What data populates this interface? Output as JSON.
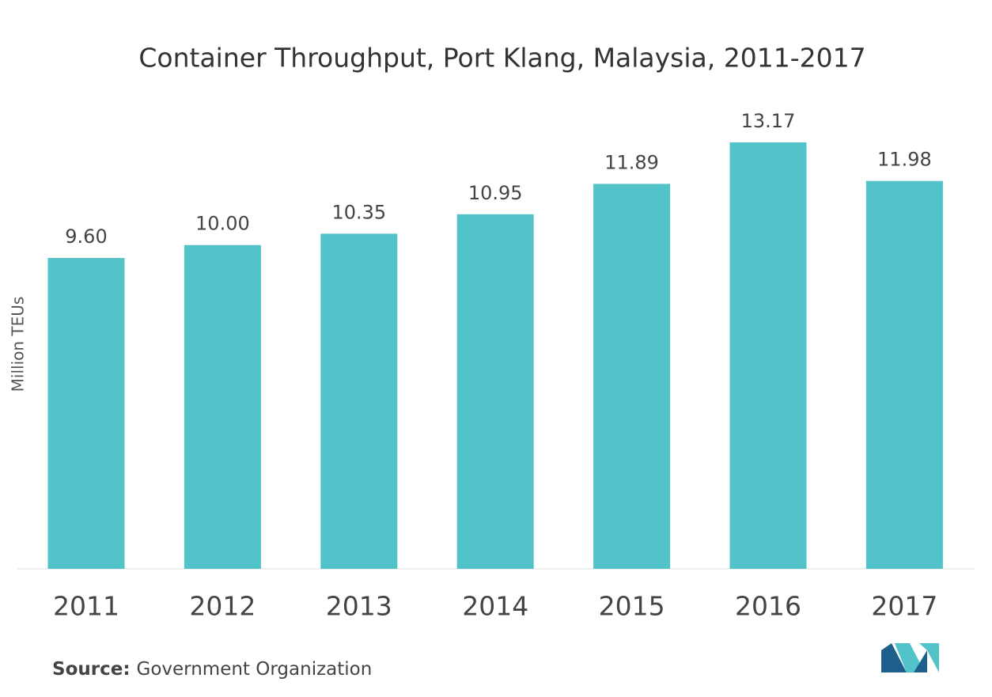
{
  "chart_data": {
    "type": "bar",
    "title": "Container Throughput, Port Klang, Malaysia, 2011-2017",
    "y_label": "Million TEUs",
    "categories": [
      "2011",
      "2012",
      "2013",
      "2014",
      "2015",
      "2016",
      "2017"
    ],
    "values": [
      9.6,
      10,
      10.35,
      10.95,
      11.89,
      13.17,
      11.98
    ],
    "value_labels": [
      "9.60",
      "10.00",
      "10.35",
      "10.95",
      "11.89",
      "13.17",
      "11.98"
    ],
    "color": "#52c3c8",
    "source_label": "Source:",
    "source": "Government Organization"
  }
}
